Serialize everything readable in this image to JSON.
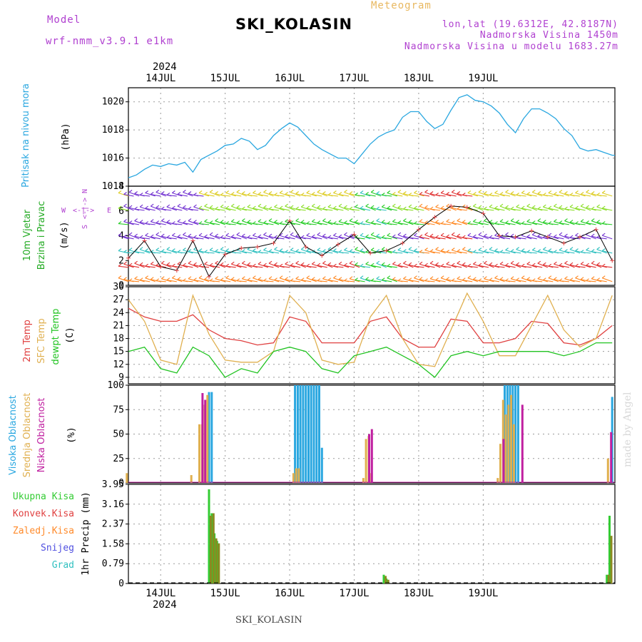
{
  "header": {
    "model_label": "Model",
    "model_name": "wrf-nmm_v3.9.1  e1km",
    "station": "SKI_KOLASIN",
    "meteogram": "Meteogram",
    "lonlat": "lon,lat (19.6312E, 42.8187N)",
    "elevation": "Nadmorska Visina 1450m",
    "model_elevation": "Nadmorska Visina u modelu 1683.27m",
    "year": "2024",
    "footer_station": "SKI_KOLASIN",
    "watermark": "made by Angel"
  },
  "colors": {
    "pressure": "#2aa7e0",
    "temp2m": "#e04040",
    "sfc": "#e0b050",
    "dewpt": "#22c422",
    "high_cloud": "#2aa7e0",
    "mid_cloud": "#e0b050",
    "low_cloud": "#c020a0",
    "total_precip": "#33cc33",
    "conv_precip": "#e04040",
    "frz": "#ff8a2a",
    "snow": "#5050e0",
    "grad": "#30c0c0",
    "wind_label": "#22aa22",
    "cloud_label_high": "#2aa7e0",
    "cloud_label_mid": "#e0b050",
    "cloud_label_low": "#c020a0"
  },
  "chart_data": [
    {
      "type": "line",
      "ylabel_side": "Pritisak na nivou mora",
      "ylabel": "(hPa)",
      "ylim": [
        1014,
        1021
      ],
      "yticks": [
        "1014",
        "1016",
        "1018",
        "1020"
      ],
      "xticks": [
        "14JUL",
        "15JUL",
        "16JUL",
        "17JUL",
        "18JUL",
        "19JUL"
      ],
      "x": [
        0,
        3,
        6,
        9,
        12,
        15,
        18,
        21,
        24,
        27,
        30,
        33,
        36,
        39,
        42,
        45,
        48,
        51,
        54,
        57,
        60,
        63,
        66,
        69,
        72,
        75,
        78,
        81,
        84,
        87,
        90,
        93,
        96,
        99,
        102,
        105,
        108,
        111,
        114,
        117,
        120,
        123,
        126,
        129,
        132,
        135,
        138,
        141,
        144,
        147,
        150,
        153,
        156,
        159,
        162,
        165,
        168,
        171,
        174,
        177,
        180,
        181
      ],
      "series": [
        {
          "name": "Pritisak na nivou mora",
          "values": [
            1014.6,
            1014.8,
            1015.2,
            1015.5,
            1015.4,
            1015.6,
            1015.5,
            1015.7,
            1015.0,
            1015.9,
            1016.2,
            1016.5,
            1016.9,
            1017.0,
            1017.4,
            1017.2,
            1016.6,
            1016.9,
            1017.6,
            1018.1,
            1018.5,
            1018.2,
            1017.6,
            1017.0,
            1016.6,
            1016.3,
            1016.0,
            1016.0,
            1015.6,
            1016.3,
            1017.0,
            1017.5,
            1017.8,
            1018.0,
            1018.9,
            1019.3,
            1019.3,
            1018.6,
            1018.1,
            1018.4,
            1019.4,
            1020.3,
            1020.5,
            1020.1,
            1020.0,
            1019.7,
            1019.2,
            1018.4,
            1017.8,
            1018.8,
            1019.5,
            1019.5,
            1019.2,
            1018.8,
            1018.1,
            1017.6,
            1016.7,
            1016.5,
            1016.6,
            1016.4,
            1016.2,
            1016.2
          ]
        }
      ]
    },
    {
      "type": "scatter",
      "ylabel_side1": "10m Vjetar",
      "ylabel_side2": "Brzina i Pravac",
      "ylabel": "(m/s)",
      "ylim": [
        0,
        8
      ],
      "yticks": [
        "0",
        "2",
        "4",
        "6",
        "8"
      ],
      "compass": {
        "n": "N",
        "s": "S",
        "e": "E",
        "w": "W",
        "arrows": "<-|->"
      },
      "x": [
        0,
        6,
        12,
        18,
        24,
        30,
        36,
        42,
        48,
        54,
        60,
        66,
        72,
        78,
        84,
        90,
        96,
        102,
        108,
        114,
        120,
        126,
        132,
        138,
        144,
        150,
        156,
        162,
        168,
        174,
        180
      ],
      "series": [
        {
          "name": "wind speed",
          "values": [
            2.2,
            3.6,
            1.5,
            1.2,
            3.6,
            0.7,
            2.5,
            3.0,
            3.1,
            3.4,
            5.2,
            3.1,
            2.4,
            3.3,
            4.1,
            2.6,
            2.8,
            3.4,
            4.5,
            5.5,
            6.4,
            6.3,
            5.8,
            4.0,
            3.9,
            4.4,
            3.9,
            3.4,
            3.9,
            4.5,
            2.0
          ]
        }
      ]
    },
    {
      "type": "line",
      "ylabel_side1": "2m Temp",
      "ylabel_side2": "SFC Temp",
      "ylabel_side3": "dewpt Temp",
      "ylabel": "(C)",
      "ylim": [
        7.5,
        30
      ],
      "yticks": [
        "9",
        "12",
        "15",
        "18",
        "21",
        "24",
        "27",
        "30"
      ],
      "x": [
        0,
        6,
        12,
        18,
        24,
        30,
        36,
        42,
        48,
        54,
        60,
        66,
        72,
        78,
        84,
        90,
        96,
        102,
        108,
        114,
        120,
        126,
        132,
        138,
        144,
        150,
        156,
        162,
        168,
        174,
        180
      ],
      "series": [
        {
          "name": "2m Temp",
          "values": [
            25,
            23,
            22,
            22,
            23.5,
            20,
            18,
            17.5,
            16.5,
            17,
            23,
            22,
            17,
            17,
            17,
            22,
            23,
            18,
            16,
            16,
            22.5,
            22,
            17,
            17,
            18,
            22,
            21.5,
            17,
            16.5,
            18,
            21
          ]
        },
        {
          "name": "SFC Temp",
          "values": [
            27,
            22,
            13,
            12,
            28,
            19,
            13,
            12.5,
            12.5,
            15,
            28,
            24,
            13,
            12,
            12.5,
            23,
            28,
            18,
            12,
            11.5,
            20,
            28.5,
            22,
            14,
            14,
            21,
            28,
            20,
            16,
            18,
            28
          ]
        },
        {
          "name": "dewpt Temp",
          "values": [
            15,
            16,
            11,
            10,
            16,
            14,
            9,
            11,
            10,
            15,
            16,
            15,
            11,
            10,
            14,
            15,
            16,
            14,
            12,
            9,
            14,
            15,
            14,
            15,
            15,
            15,
            15,
            14,
            15,
            17,
            17
          ]
        }
      ]
    },
    {
      "type": "bar",
      "ylabel_side1": "Visoka Oblacnost",
      "ylabel_side2": "Srednja Oblacnost",
      "ylabel_side3": "Niska Oblacnost",
      "ylabel": "(%)",
      "ylim": [
        0,
        100
      ],
      "yticks": [
        "0",
        "25",
        "50",
        "75",
        "100"
      ],
      "x": [
        0,
        24,
        27,
        28,
        29,
        30,
        31,
        32,
        62,
        63,
        64,
        65,
        66,
        67,
        68,
        69,
        70,
        71,
        72,
        88,
        89,
        90,
        91,
        138,
        139,
        140,
        141,
        142,
        143,
        144,
        145,
        146,
        147,
        179,
        180
      ],
      "series": [
        {
          "name": "Visoka Oblacnost",
          "values": [
            0,
            0,
            0,
            0,
            0,
            93,
            93,
            0,
            100,
            100,
            100,
            100,
            100,
            100,
            100,
            100,
            100,
            100,
            36,
            0,
            0,
            0,
            0,
            0,
            0,
            100,
            100,
            100,
            100,
            100,
            100,
            0,
            0,
            0,
            88
          ]
        },
        {
          "name": "Srednja Oblacnost",
          "values": [
            10,
            8,
            60,
            60,
            80,
            90,
            0,
            0,
            10,
            15,
            15,
            0,
            0,
            0,
            0,
            0,
            0,
            0,
            0,
            5,
            45,
            48,
            10,
            5,
            40,
            85,
            70,
            80,
            90,
            60,
            0,
            0,
            0,
            25,
            0
          ]
        },
        {
          "name": "Niska Oblacnost",
          "values": [
            0,
            0,
            92,
            85,
            0,
            0,
            0,
            0,
            0,
            0,
            0,
            0,
            0,
            0,
            0,
            0,
            0,
            0,
            0,
            0,
            50,
            55,
            0,
            0,
            45,
            0,
            0,
            0,
            0,
            0,
            0,
            80,
            0,
            52,
            0
          ]
        }
      ]
    },
    {
      "type": "bar",
      "ylabel_side_labels": [
        "Ukupna Kisa",
        "Konvek.Kisa",
        "Zaledj.Kisa",
        "Snijeg",
        "Grad"
      ],
      "ylabel": "1hr Precip (mm)",
      "ylim": [
        0,
        3.95
      ],
      "yticks": [
        "0",
        "0.79",
        "1.58",
        "2.37",
        "3.16",
        "3.95"
      ],
      "x": [
        30,
        31,
        32,
        33,
        95,
        96,
        178,
        179
      ],
      "series": [
        {
          "name": "Ukupna Kisa",
          "values": [
            3.75,
            2.8,
            2.0,
            1.7,
            0.35,
            0.2,
            0.35,
            2.7
          ]
        },
        {
          "name": "Konvek.Kisa",
          "values": [
            2.7,
            2.8,
            1.8,
            1.6,
            0.3,
            0.15,
            0.35,
            1.9
          ]
        }
      ]
    }
  ]
}
